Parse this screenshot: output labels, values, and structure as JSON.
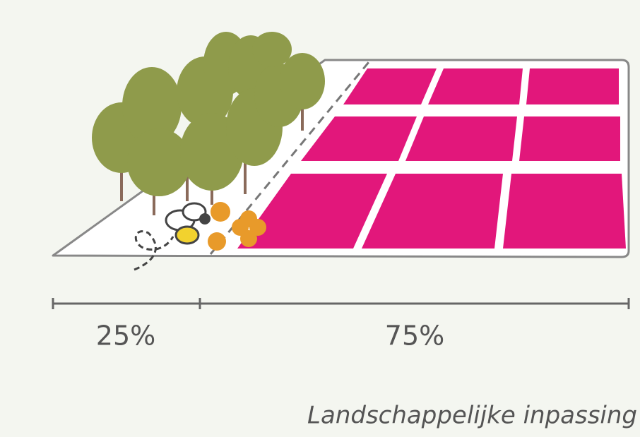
{
  "scale": {
    "segments": [
      {
        "label": "25%"
      },
      {
        "label": "75%"
      }
    ]
  },
  "caption": "Landschappelijke inpassing"
}
